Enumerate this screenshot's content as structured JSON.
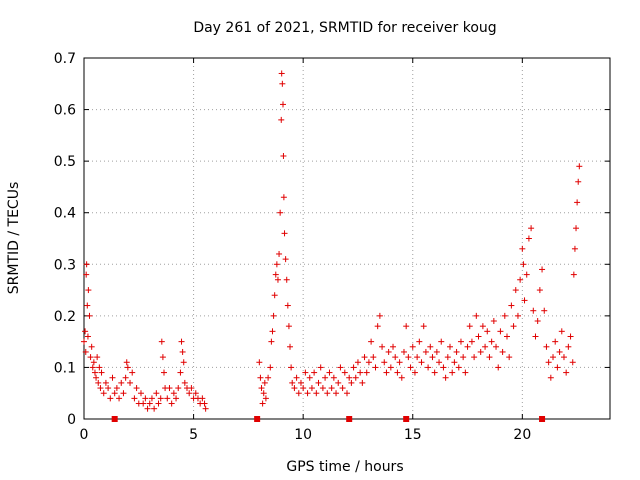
{
  "chart_data": {
    "type": "scatter",
    "title": "Day 261 of 2021, SRMTID for receiver koug",
    "xlabel": "GPS time / hours",
    "ylabel": "SRMTID / TECUs",
    "xlim": [
      0,
      24
    ],
    "ylim": [
      0,
      0.7
    ],
    "xticks": [
      0,
      5,
      10,
      15,
      20
    ],
    "yticks": [
      0,
      0.1,
      0.2,
      0.3,
      0.4,
      0.5,
      0.6,
      0.7
    ],
    "grid": true,
    "marker": "plus",
    "color": "#e00000",
    "series": [
      {
        "name": "SRMTID",
        "points": [
          [
            0.0,
            0.15
          ],
          [
            0.05,
            0.17
          ],
          [
            0.08,
            0.13
          ],
          [
            0.1,
            0.28
          ],
          [
            0.12,
            0.3
          ],
          [
            0.15,
            0.22
          ],
          [
            0.18,
            0.16
          ],
          [
            0.2,
            0.25
          ],
          [
            0.25,
            0.2
          ],
          [
            0.3,
            0.12
          ],
          [
            0.35,
            0.14
          ],
          [
            0.4,
            0.1
          ],
          [
            0.45,
            0.11
          ],
          [
            0.5,
            0.09
          ],
          [
            0.55,
            0.08
          ],
          [
            0.6,
            0.12
          ],
          [
            0.65,
            0.07
          ],
          [
            0.7,
            0.1
          ],
          [
            0.75,
            0.06
          ],
          [
            0.8,
            0.09
          ],
          [
            0.9,
            0.05
          ],
          [
            1.0,
            0.07
          ],
          [
            1.1,
            0.06
          ],
          [
            1.2,
            0.04
          ],
          [
            1.3,
            0.08
          ],
          [
            1.4,
            0.05
          ],
          [
            1.5,
            0.06
          ],
          [
            1.6,
            0.04
          ],
          [
            1.7,
            0.07
          ],
          [
            1.8,
            0.05
          ],
          [
            1.9,
            0.08
          ],
          [
            1.95,
            0.11
          ],
          [
            2.0,
            0.1
          ],
          [
            2.1,
            0.07
          ],
          [
            2.2,
            0.09
          ],
          [
            2.3,
            0.04
          ],
          [
            2.4,
            0.06
          ],
          [
            2.5,
            0.03
          ],
          [
            2.6,
            0.05
          ],
          [
            2.7,
            0.03
          ],
          [
            2.8,
            0.04
          ],
          [
            2.9,
            0.02
          ],
          [
            3.0,
            0.03
          ],
          [
            3.1,
            0.04
          ],
          [
            3.2,
            0.02
          ],
          [
            3.3,
            0.05
          ],
          [
            3.4,
            0.03
          ],
          [
            3.5,
            0.04
          ],
          [
            3.55,
            0.15
          ],
          [
            3.6,
            0.12
          ],
          [
            3.65,
            0.09
          ],
          [
            3.7,
            0.06
          ],
          [
            3.8,
            0.04
          ],
          [
            3.9,
            0.06
          ],
          [
            4.0,
            0.03
          ],
          [
            4.1,
            0.05
          ],
          [
            4.2,
            0.04
          ],
          [
            4.3,
            0.06
          ],
          [
            4.4,
            0.09
          ],
          [
            4.45,
            0.15
          ],
          [
            4.5,
            0.13
          ],
          [
            4.55,
            0.11
          ],
          [
            4.6,
            0.07
          ],
          [
            4.7,
            0.06
          ],
          [
            4.8,
            0.05
          ],
          [
            4.9,
            0.06
          ],
          [
            5.0,
            0.04
          ],
          [
            5.1,
            0.05
          ],
          [
            5.2,
            0.04
          ],
          [
            5.3,
            0.03
          ],
          [
            5.4,
            0.04
          ],
          [
            5.5,
            0.03
          ],
          [
            5.55,
            0.02
          ],
          [
            8.0,
            0.11
          ],
          [
            8.05,
            0.08
          ],
          [
            8.1,
            0.06
          ],
          [
            8.15,
            0.03
          ],
          [
            8.2,
            0.05
          ],
          [
            8.25,
            0.07
          ],
          [
            8.3,
            0.04
          ],
          [
            8.4,
            0.08
          ],
          [
            8.5,
            0.1
          ],
          [
            8.55,
            0.15
          ],
          [
            8.6,
            0.17
          ],
          [
            8.65,
            0.2
          ],
          [
            8.7,
            0.24
          ],
          [
            8.75,
            0.28
          ],
          [
            8.8,
            0.3
          ],
          [
            8.85,
            0.27
          ],
          [
            8.9,
            0.32
          ],
          [
            8.95,
            0.4
          ],
          [
            9.0,
            0.58
          ],
          [
            9.02,
            0.67
          ],
          [
            9.05,
            0.65
          ],
          [
            9.08,
            0.61
          ],
          [
            9.1,
            0.51
          ],
          [
            9.12,
            0.43
          ],
          [
            9.15,
            0.36
          ],
          [
            9.2,
            0.31
          ],
          [
            9.25,
            0.27
          ],
          [
            9.3,
            0.22
          ],
          [
            9.35,
            0.18
          ],
          [
            9.4,
            0.14
          ],
          [
            9.45,
            0.1
          ],
          [
            9.5,
            0.07
          ],
          [
            9.6,
            0.06
          ],
          [
            9.7,
            0.08
          ],
          [
            9.8,
            0.05
          ],
          [
            9.9,
            0.07
          ],
          [
            10.0,
            0.06
          ],
          [
            10.1,
            0.09
          ],
          [
            10.2,
            0.05
          ],
          [
            10.3,
            0.08
          ],
          [
            10.4,
            0.06
          ],
          [
            10.5,
            0.09
          ],
          [
            10.6,
            0.05
          ],
          [
            10.7,
            0.07
          ],
          [
            10.8,
            0.1
          ],
          [
            10.9,
            0.06
          ],
          [
            11.0,
            0.08
          ],
          [
            11.1,
            0.05
          ],
          [
            11.2,
            0.09
          ],
          [
            11.3,
            0.06
          ],
          [
            11.4,
            0.08
          ],
          [
            11.5,
            0.05
          ],
          [
            11.6,
            0.07
          ],
          [
            11.7,
            0.1
          ],
          [
            11.8,
            0.06
          ],
          [
            11.9,
            0.09
          ],
          [
            12.0,
            0.05
          ],
          [
            12.1,
            0.08
          ],
          [
            12.2,
            0.07
          ],
          [
            12.3,
            0.1
          ],
          [
            12.4,
            0.08
          ],
          [
            12.5,
            0.11
          ],
          [
            12.6,
            0.09
          ],
          [
            12.7,
            0.07
          ],
          [
            12.8,
            0.12
          ],
          [
            12.9,
            0.09
          ],
          [
            13.0,
            0.11
          ],
          [
            13.1,
            0.15
          ],
          [
            13.2,
            0.12
          ],
          [
            13.3,
            0.1
          ],
          [
            13.4,
            0.18
          ],
          [
            13.5,
            0.2
          ],
          [
            13.6,
            0.14
          ],
          [
            13.7,
            0.11
          ],
          [
            13.8,
            0.09
          ],
          [
            13.9,
            0.13
          ],
          [
            14.0,
            0.1
          ],
          [
            14.1,
            0.14
          ],
          [
            14.2,
            0.12
          ],
          [
            14.3,
            0.09
          ],
          [
            14.4,
            0.11
          ],
          [
            14.5,
            0.08
          ],
          [
            14.6,
            0.13
          ],
          [
            14.7,
            0.18
          ],
          [
            14.8,
            0.12
          ],
          [
            14.9,
            0.1
          ],
          [
            15.0,
            0.14
          ],
          [
            15.1,
            0.09
          ],
          [
            15.2,
            0.12
          ],
          [
            15.3,
            0.15
          ],
          [
            15.4,
            0.11
          ],
          [
            15.5,
            0.18
          ],
          [
            15.6,
            0.13
          ],
          [
            15.7,
            0.1
          ],
          [
            15.8,
            0.14
          ],
          [
            15.9,
            0.12
          ],
          [
            16.0,
            0.09
          ],
          [
            16.1,
            0.13
          ],
          [
            16.2,
            0.11
          ],
          [
            16.3,
            0.15
          ],
          [
            16.4,
            0.1
          ],
          [
            16.5,
            0.08
          ],
          [
            16.6,
            0.12
          ],
          [
            16.7,
            0.14
          ],
          [
            16.8,
            0.09
          ],
          [
            16.9,
            0.11
          ],
          [
            17.0,
            0.13
          ],
          [
            17.1,
            0.1
          ],
          [
            17.2,
            0.15
          ],
          [
            17.3,
            0.12
          ],
          [
            17.4,
            0.09
          ],
          [
            17.5,
            0.14
          ],
          [
            17.6,
            0.18
          ],
          [
            17.7,
            0.15
          ],
          [
            17.8,
            0.12
          ],
          [
            17.9,
            0.2
          ],
          [
            18.0,
            0.16
          ],
          [
            18.1,
            0.13
          ],
          [
            18.2,
            0.18
          ],
          [
            18.3,
            0.14
          ],
          [
            18.4,
            0.17
          ],
          [
            18.5,
            0.12
          ],
          [
            18.6,
            0.15
          ],
          [
            18.7,
            0.19
          ],
          [
            18.8,
            0.14
          ],
          [
            18.9,
            0.1
          ],
          [
            19.0,
            0.17
          ],
          [
            19.1,
            0.13
          ],
          [
            19.2,
            0.2
          ],
          [
            19.3,
            0.16
          ],
          [
            19.4,
            0.12
          ],
          [
            19.5,
            0.22
          ],
          [
            19.6,
            0.18
          ],
          [
            19.7,
            0.25
          ],
          [
            19.8,
            0.2
          ],
          [
            19.9,
            0.27
          ],
          [
            20.0,
            0.33
          ],
          [
            20.05,
            0.3
          ],
          [
            20.1,
            0.23
          ],
          [
            20.2,
            0.28
          ],
          [
            20.3,
            0.35
          ],
          [
            20.4,
            0.37
          ],
          [
            20.5,
            0.21
          ],
          [
            20.6,
            0.16
          ],
          [
            20.7,
            0.19
          ],
          [
            20.8,
            0.25
          ],
          [
            20.9,
            0.29
          ],
          [
            21.0,
            0.21
          ],
          [
            21.1,
            0.14
          ],
          [
            21.2,
            0.11
          ],
          [
            21.3,
            0.08
          ],
          [
            21.4,
            0.12
          ],
          [
            21.5,
            0.15
          ],
          [
            21.6,
            0.1
          ],
          [
            21.7,
            0.13
          ],
          [
            21.8,
            0.17
          ],
          [
            21.9,
            0.12
          ],
          [
            22.0,
            0.09
          ],
          [
            22.1,
            0.14
          ],
          [
            22.2,
            0.16
          ],
          [
            22.3,
            0.11
          ],
          [
            22.35,
            0.28
          ],
          [
            22.4,
            0.33
          ],
          [
            22.45,
            0.37
          ],
          [
            22.5,
            0.42
          ],
          [
            22.55,
            0.46
          ],
          [
            22.6,
            0.49
          ]
        ]
      }
    ],
    "bottom_markers_x": [
      1.4,
      7.9,
      12.1,
      14.7,
      20.9
    ]
  }
}
